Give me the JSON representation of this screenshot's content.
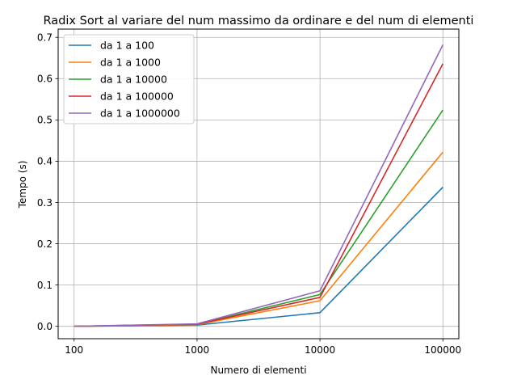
{
  "chart_data": {
    "type": "line",
    "title": "Radix Sort al variare del num massimo da ordinare e del num di elementi",
    "xlabel": "Numero di elementi",
    "ylabel": "Tempo (s)",
    "xscale": "log",
    "x": [
      100,
      1000,
      10000,
      100000
    ],
    "xticks": [
      "100",
      "1000",
      "10000",
      "100000"
    ],
    "yticks": [
      "0.0",
      "0.1",
      "0.2",
      "0.3",
      "0.4",
      "0.5",
      "0.6",
      "0.7"
    ],
    "ylim": [
      -0.03,
      0.72
    ],
    "grid": true,
    "legend_position": "top-left",
    "series": [
      {
        "name": "da 1 a 100",
        "color": "#1f77b4",
        "values": [
          0.0,
          0.003,
          0.033,
          0.337
        ]
      },
      {
        "name": "da 1 a 1000",
        "color": "#ff7f0e",
        "values": [
          0.0,
          0.004,
          0.062,
          0.422
        ]
      },
      {
        "name": "da 1 a 10000",
        "color": "#2ca02c",
        "values": [
          0.0,
          0.005,
          0.077,
          0.524
        ]
      },
      {
        "name": "da 1 a 100000",
        "color": "#d62728",
        "values": [
          0.0,
          0.005,
          0.07,
          0.636
        ]
      },
      {
        "name": "da 1 a 1000000",
        "color": "#9467bd",
        "values": [
          0.0,
          0.006,
          0.086,
          0.682
        ]
      }
    ]
  }
}
